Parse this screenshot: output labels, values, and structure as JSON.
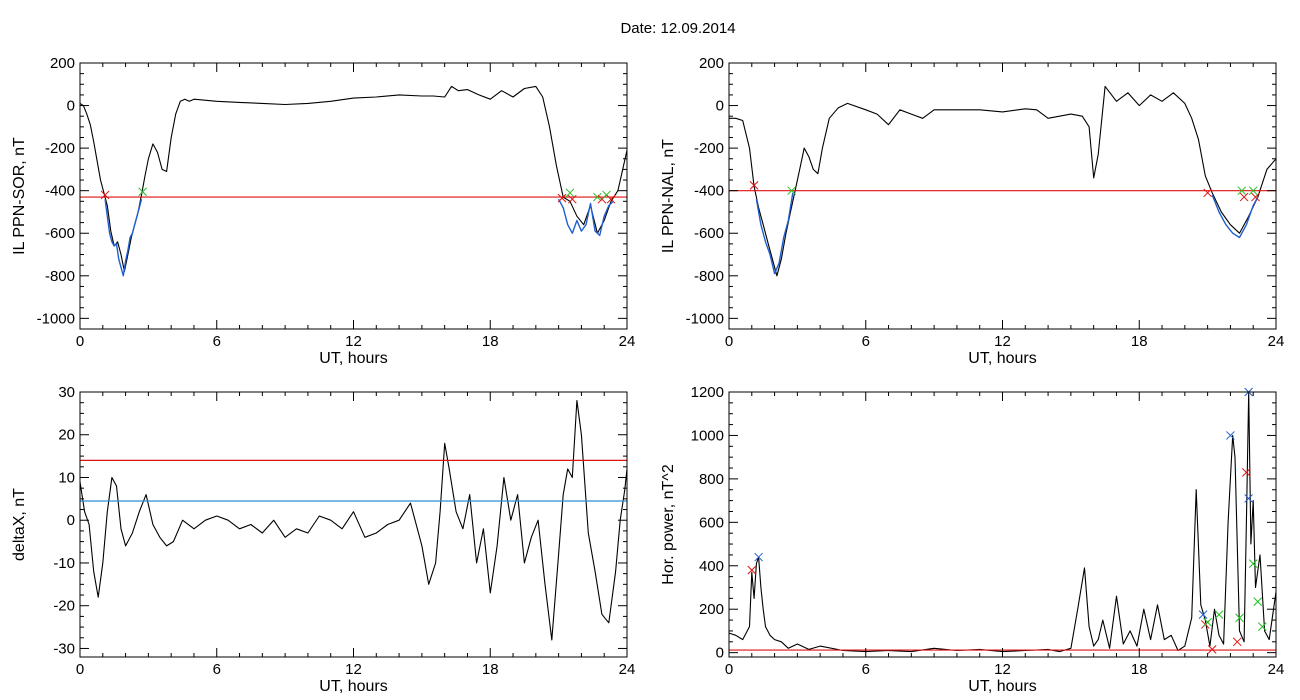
{
  "title": "Date:  12.09.2014",
  "colors": {
    "axis": "#000000",
    "trace": "#000000",
    "substorm": "#1f5fd0",
    "red": "#e01010",
    "blue": "#2a8fd6",
    "green": "#20c020",
    "marker_blue": "#2060d0"
  },
  "chart_data": [
    {
      "id": "sor",
      "type": "line",
      "xlabel": "UT, hours",
      "ylabel": "IL PPN-SOR, nT",
      "xlim": [
        0,
        24
      ],
      "ylim": [
        -1050,
        200
      ],
      "xticks": [
        0,
        6,
        12,
        18,
        24
      ],
      "yticks": [
        -1000,
        -800,
        -600,
        -400,
        -200,
        0,
        200
      ],
      "xtick_labels": [
        "0",
        "6",
        "12",
        "18",
        "24"
      ],
      "ytick_labels": [
        "-1000",
        "-800",
        "-600",
        "-400",
        "-200",
        "0",
        "200"
      ],
      "grid": false,
      "series": [
        {
          "color": "#000000",
          "x": [
            0,
            0.15,
            0.3,
            0.45,
            0.6,
            0.75,
            0.9,
            1.05,
            1.2,
            1.35,
            1.5,
            1.65,
            1.8,
            1.95,
            2.1,
            2.25,
            2.4,
            2.55,
            2.7,
            2.85,
            3.0,
            3.2,
            3.4,
            3.6,
            3.8,
            4.0,
            4.2,
            4.4,
            4.6,
            4.8,
            5.0,
            6,
            7,
            8,
            9,
            10,
            11,
            12,
            13,
            14,
            15,
            15.5,
            16,
            16.3,
            16.6,
            17,
            17.5,
            18,
            18.5,
            19,
            19.5,
            20,
            20.3,
            20.6,
            20.9,
            21.2,
            21.5,
            21.8,
            22.1,
            22.4,
            22.7,
            23.0,
            23.3,
            23.6,
            24
          ],
          "values": [
            10,
            0,
            -40,
            -90,
            -170,
            -260,
            -350,
            -410,
            -470,
            -590,
            -660,
            -640,
            -700,
            -780,
            -700,
            -620,
            -560,
            -500,
            -420,
            -330,
            -250,
            -180,
            -220,
            -300,
            -310,
            -150,
            -40,
            20,
            30,
            20,
            30,
            20,
            15,
            10,
            5,
            10,
            20,
            35,
            40,
            50,
            45,
            45,
            40,
            90,
            70,
            75,
            50,
            30,
            70,
            40,
            80,
            90,
            40,
            -100,
            -280,
            -430,
            -450,
            -520,
            -560,
            -470,
            -600,
            -540,
            -450,
            -400,
            -210
          ]
        },
        {
          "color": "#1f5fd0",
          "x": [
            1.1,
            1.2,
            1.3,
            1.4,
            1.5,
            1.6,
            1.7,
            1.8,
            1.9,
            2.0,
            2.1,
            2.2,
            2.3,
            2.4,
            2.5,
            2.6,
            2.7
          ],
          "values": [
            -440,
            -520,
            -600,
            -640,
            -660,
            -650,
            -720,
            -760,
            -800,
            -730,
            -680,
            -620,
            -600,
            -560,
            -520,
            -480,
            -440
          ]
        },
        {
          "color": "#1f5fd0",
          "x": [
            21.0,
            21.2,
            21.4,
            21.6,
            21.8,
            22.0,
            22.2,
            22.4,
            22.6,
            22.8,
            23.0,
            23.2,
            23.4
          ],
          "values": [
            -440,
            -480,
            -560,
            -600,
            -540,
            -590,
            -560,
            -460,
            -590,
            -610,
            -520,
            -470,
            -450
          ]
        }
      ],
      "hlines": [
        {
          "y": -430,
          "color": "#e01010"
        }
      ],
      "markers": [
        {
          "x": 1.1,
          "y": -420,
          "color": "#e01010"
        },
        {
          "x": 2.75,
          "y": -405,
          "color": "#20c020"
        },
        {
          "x": 21.15,
          "y": -435,
          "color": "#e01010"
        },
        {
          "x": 21.5,
          "y": -410,
          "color": "#20c020"
        },
        {
          "x": 21.6,
          "y": -440,
          "color": "#e01010"
        },
        {
          "x": 22.7,
          "y": -430,
          "color": "#20c020"
        },
        {
          "x": 22.9,
          "y": -440,
          "color": "#e01010"
        },
        {
          "x": 23.1,
          "y": -420,
          "color": "#20c020"
        },
        {
          "x": 23.3,
          "y": -440,
          "color": "#e01010"
        }
      ]
    },
    {
      "id": "nal",
      "type": "line",
      "xlabel": "UT, hours",
      "ylabel": "IL PPN-NAL, nT",
      "xlim": [
        0,
        24
      ],
      "ylim": [
        -1050,
        200
      ],
      "xticks": [
        0,
        6,
        12,
        18,
        24
      ],
      "yticks": [
        -1000,
        -800,
        -600,
        -400,
        -200,
        0,
        200
      ],
      "xtick_labels": [
        "0",
        "6",
        "12",
        "18",
        "24"
      ],
      "ytick_labels": [
        "-1000",
        "-800",
        "-600",
        "-400",
        "-200",
        "0",
        "200"
      ],
      "grid": false,
      "series": [
        {
          "color": "#000000",
          "x": [
            0,
            0.3,
            0.6,
            0.9,
            1.1,
            1.3,
            1.5,
            1.7,
            1.9,
            2.1,
            2.3,
            2.5,
            2.7,
            2.9,
            3.1,
            3.3,
            3.5,
            3.7,
            3.9,
            4.1,
            4.4,
            4.8,
            5.2,
            6,
            6.5,
            7,
            7.5,
            8,
            8.5,
            9,
            10,
            11,
            12,
            13,
            13.5,
            14,
            14.5,
            15,
            15.5,
            15.8,
            16,
            16.2,
            16.5,
            17,
            17.5,
            18,
            18.5,
            19,
            19.5,
            20,
            20.3,
            20.6,
            20.9,
            21.2,
            21.6,
            22,
            22.4,
            22.8,
            23.2,
            23.6,
            24
          ],
          "values": [
            -60,
            -60,
            -70,
            -200,
            -380,
            -480,
            -560,
            -640,
            -720,
            -800,
            -720,
            -600,
            -500,
            -400,
            -300,
            -200,
            -240,
            -300,
            -320,
            -200,
            -60,
            -10,
            10,
            -20,
            -40,
            -90,
            -20,
            -40,
            -60,
            -20,
            -20,
            -20,
            -30,
            -15,
            -20,
            -60,
            -50,
            -40,
            -50,
            -100,
            -340,
            -230,
            90,
            20,
            60,
            0,
            50,
            20,
            60,
            10,
            -60,
            -160,
            -330,
            -410,
            -500,
            -560,
            -600,
            -520,
            -430,
            -300,
            -250
          ]
        },
        {
          "color": "#1f5fd0",
          "x": [
            1.2,
            1.4,
            1.6,
            1.8,
            2.0,
            2.2,
            2.4,
            2.6,
            2.8
          ],
          "values": [
            -440,
            -560,
            -640,
            -700,
            -790,
            -740,
            -620,
            -540,
            -410
          ]
        },
        {
          "color": "#1f5fd0",
          "x": [
            21.2,
            21.5,
            21.8,
            22.1,
            22.4,
            22.7,
            23.0,
            23.2
          ],
          "values": [
            -420,
            -500,
            -560,
            -600,
            -620,
            -560,
            -470,
            -430
          ]
        }
      ],
      "hlines": [
        {
          "y": -400,
          "color": "#e01010"
        }
      ],
      "markers": [
        {
          "x": 1.1,
          "y": -375,
          "color": "#e01010"
        },
        {
          "x": 2.75,
          "y": -400,
          "color": "#20c020"
        },
        {
          "x": 21.0,
          "y": -410,
          "color": "#e01010"
        },
        {
          "x": 22.5,
          "y": -400,
          "color": "#20c020"
        },
        {
          "x": 22.6,
          "y": -430,
          "color": "#e01010"
        },
        {
          "x": 23.0,
          "y": -400,
          "color": "#20c020"
        },
        {
          "x": 23.1,
          "y": -430,
          "color": "#e01010"
        }
      ]
    },
    {
      "id": "deltax",
      "type": "line",
      "xlabel": "UT, hours",
      "ylabel": "deltaX, nT",
      "xlim": [
        0,
        24
      ],
      "ylim": [
        -32,
        30
      ],
      "xticks": [
        0,
        6,
        12,
        18,
        24
      ],
      "yticks": [
        -30,
        -20,
        -10,
        0,
        10,
        20,
        30
      ],
      "xtick_labels": [
        "0",
        "6",
        "12",
        "18",
        "24"
      ],
      "ytick_labels": [
        "-30",
        "-20",
        "-10",
        "0",
        "10",
        "20",
        "30"
      ],
      "grid": false,
      "series": [
        {
          "color": "#000000",
          "x": [
            0,
            0.2,
            0.4,
            0.6,
            0.8,
            1.0,
            1.2,
            1.4,
            1.6,
            1.8,
            2.0,
            2.3,
            2.6,
            2.9,
            3.2,
            3.5,
            3.8,
            4.1,
            4.5,
            5,
            5.5,
            6,
            6.5,
            7,
            7.5,
            8,
            8.5,
            9,
            9.5,
            10,
            10.5,
            11,
            11.5,
            12,
            12.5,
            13,
            13.5,
            14,
            14.5,
            15,
            15.3,
            15.6,
            15.8,
            16.0,
            16.2,
            16.5,
            16.8,
            17.1,
            17.4,
            17.7,
            18.0,
            18.3,
            18.6,
            18.9,
            19.2,
            19.5,
            19.8,
            20.1,
            20.4,
            20.7,
            21.0,
            21.2,
            21.4,
            21.6,
            21.8,
            22.0,
            22.3,
            22.6,
            22.9,
            23.2,
            23.5,
            23.7,
            23.9,
            24
          ],
          "values": [
            9,
            2,
            -1,
            -12,
            -18,
            -10,
            2,
            10,
            8,
            -2,
            -6,
            -3,
            2,
            6,
            -1,
            -4,
            -6,
            -5,
            0,
            -2,
            0,
            1,
            0,
            -2,
            -1,
            -3,
            0,
            -4,
            -2,
            -3,
            1,
            0,
            -2,
            2,
            -4,
            -3,
            -1,
            0,
            4,
            -6,
            -15,
            -10,
            2,
            18,
            12,
            2,
            -2,
            6,
            -10,
            -2,
            -17,
            -6,
            10,
            0,
            6,
            -10,
            -4,
            0,
            -15,
            -28,
            -8,
            6,
            12,
            10,
            28,
            20,
            -3,
            -12,
            -22,
            -24,
            -12,
            0,
            7,
            12
          ]
        }
      ],
      "hlines": [
        {
          "y": 14,
          "color": "#e01010"
        },
        {
          "y": 4.5,
          "color": "#2a8fd6"
        }
      ],
      "markers": []
    },
    {
      "id": "power",
      "type": "line",
      "xlabel": "UT, hours",
      "ylabel": "Hor. power, nT^2",
      "xlim": [
        0,
        24
      ],
      "ylim": [
        -20,
        1200
      ],
      "xticks": [
        0,
        6,
        12,
        18,
        24
      ],
      "yticks": [
        0,
        200,
        400,
        600,
        800,
        1000,
        1200
      ],
      "xtick_labels": [
        "0",
        "6",
        "12",
        "18",
        "24"
      ],
      "ytick_labels": [
        "0",
        "200",
        "400",
        "600",
        "800",
        "1000",
        "1200"
      ],
      "grid": false,
      "series": [
        {
          "color": "#000000",
          "x": [
            0,
            0.3,
            0.6,
            0.9,
            1.0,
            1.1,
            1.2,
            1.3,
            1.4,
            1.5,
            1.6,
            1.8,
            2.0,
            2.3,
            2.6,
            3.0,
            3.5,
            4.0,
            5,
            6,
            7,
            8,
            9,
            10,
            11,
            12,
            13,
            14,
            14.5,
            15,
            15.3,
            15.6,
            15.8,
            16.0,
            16.2,
            16.4,
            16.7,
            17.0,
            17.3,
            17.6,
            17.9,
            18.2,
            18.5,
            18.8,
            19.1,
            19.4,
            19.7,
            20.0,
            20.3,
            20.5,
            20.7,
            20.9,
            21.1,
            21.3,
            21.5,
            21.7,
            21.9,
            22.1,
            22.2,
            22.4,
            22.6,
            22.7,
            22.8,
            22.9,
            23.0,
            23.1,
            23.3,
            23.5,
            23.7,
            24
          ],
          "values": [
            90,
            80,
            60,
            120,
            370,
            250,
            410,
            440,
            300,
            200,
            120,
            80,
            60,
            50,
            20,
            40,
            15,
            30,
            10,
            5,
            10,
            5,
            20,
            10,
            15,
            5,
            10,
            15,
            5,
            20,
            200,
            390,
            120,
            30,
            60,
            150,
            20,
            260,
            40,
            100,
            30,
            200,
            60,
            220,
            60,
            80,
            10,
            30,
            160,
            750,
            220,
            150,
            30,
            200,
            80,
            40,
            600,
            1000,
            900,
            100,
            50,
            600,
            1200,
            500,
            700,
            300,
            450,
            100,
            60,
            280
          ]
        }
      ],
      "hlines": [
        {
          "y": 12,
          "color": "#e01010"
        }
      ],
      "markers": [
        {
          "x": 1.0,
          "y": 380,
          "color": "#e01010"
        },
        {
          "x": 1.3,
          "y": 440,
          "color": "#2060d0"
        },
        {
          "x": 20.8,
          "y": 175,
          "color": "#2060d0"
        },
        {
          "x": 20.9,
          "y": 130,
          "color": "#e01010"
        },
        {
          "x": 21.0,
          "y": 140,
          "color": "#20c020"
        },
        {
          "x": 21.2,
          "y": 15,
          "color": "#e01010"
        },
        {
          "x": 21.5,
          "y": 175,
          "color": "#20c020"
        },
        {
          "x": 22.0,
          "y": 1000,
          "color": "#2060d0"
        },
        {
          "x": 22.3,
          "y": 50,
          "color": "#e01010"
        },
        {
          "x": 22.4,
          "y": 160,
          "color": "#20c020"
        },
        {
          "x": 22.8,
          "y": 1200,
          "color": "#2060d0"
        },
        {
          "x": 22.7,
          "y": 830,
          "color": "#e01010"
        },
        {
          "x": 22.8,
          "y": 710,
          "color": "#2060d0"
        },
        {
          "x": 23.0,
          "y": 410,
          "color": "#20c020"
        },
        {
          "x": 23.2,
          "y": 235,
          "color": "#20c020"
        },
        {
          "x": 23.4,
          "y": 120,
          "color": "#20c020"
        }
      ]
    }
  ]
}
